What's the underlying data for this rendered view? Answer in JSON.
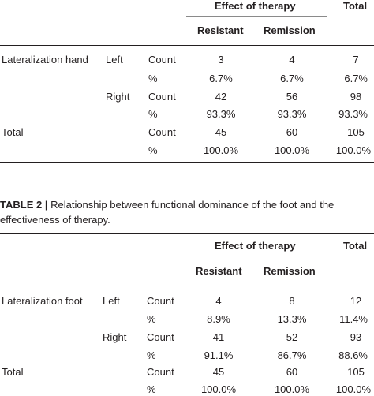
{
  "table1": {
    "header_group": "Effect of therapy",
    "header_total": "Total",
    "header_resistant": "Resistant",
    "header_remission": "Remission",
    "var_label": "Lateralization hand",
    "rows": [
      {
        "side": "Left",
        "stat": "Count",
        "resistant": "3",
        "remission": "4",
        "total": "7"
      },
      {
        "side": "",
        "stat": "%",
        "resistant": "6.7%",
        "remission": "6.7%",
        "total": "6.7%"
      },
      {
        "side": "Right",
        "stat": "Count",
        "resistant": "42",
        "remission": "56",
        "total": "98"
      },
      {
        "side": "",
        "stat": "%",
        "resistant": "93.3%",
        "remission": "93.3%",
        "total": "93.3%"
      }
    ],
    "total_label": "Total",
    "total_rows": [
      {
        "stat": "Count",
        "resistant": "45",
        "remission": "60",
        "total": "105"
      },
      {
        "stat": "%",
        "resistant": "100.0%",
        "remission": "100.0%",
        "total": "100.0%"
      }
    ]
  },
  "caption2": {
    "label": "TABLE 2 |",
    "text": "Relationship between functional dominance of the foot and the effectiveness of therapy."
  },
  "table2": {
    "header_group": "Effect of therapy",
    "header_total": "Total",
    "header_resistant": "Resistant",
    "header_remission": "Remission",
    "var_label": "Lateralization foot",
    "rows": [
      {
        "side": "Left",
        "stat": "Count",
        "resistant": "4",
        "remission": "8",
        "total": "12"
      },
      {
        "side": "",
        "stat": "%",
        "resistant": "8.9%",
        "remission": "13.3%",
        "total": "11.4%"
      },
      {
        "side": "Right",
        "stat": "Count",
        "resistant": "41",
        "remission": "52",
        "total": "93"
      },
      {
        "side": "",
        "stat": "%",
        "resistant": "91.1%",
        "remission": "86.7%",
        "total": "88.6%"
      }
    ],
    "total_label": "Total",
    "total_rows": [
      {
        "stat": "Count",
        "resistant": "45",
        "remission": "60",
        "total": "105"
      },
      {
        "stat": "%",
        "resistant": "100.0%",
        "remission": "100.0%",
        "total": "100.0%"
      }
    ]
  }
}
